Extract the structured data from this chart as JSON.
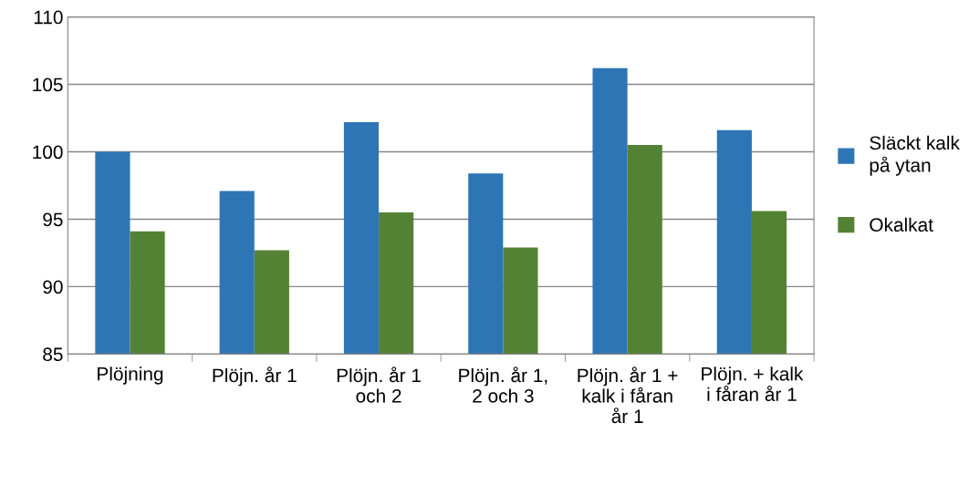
{
  "chart_data": {
    "type": "bar",
    "categories": [
      "Plöjning",
      "Plöjn. år 1",
      "Plöjn. år 1 och 2",
      "Plöjn. år 1, 2 och 3",
      "Plöjn. år 1 + kalk i fåran år 1",
      "Plöjn. + kalk i fåran år 1"
    ],
    "series": [
      {
        "name": "Släckt kalk på ytan",
        "color": "#2e75b6",
        "values": [
          100,
          97.1,
          102.2,
          98.4,
          106.2,
          101.6
        ]
      },
      {
        "name": "Okalkat",
        "color": "#548235",
        "values": [
          94.1,
          92.7,
          95.5,
          92.9,
          100.5,
          95.6
        ]
      }
    ],
    "ylim": [
      85,
      110
    ],
    "yticks": [
      85,
      90,
      95,
      100,
      105,
      110
    ],
    "grid": "y",
    "legend": "right"
  }
}
